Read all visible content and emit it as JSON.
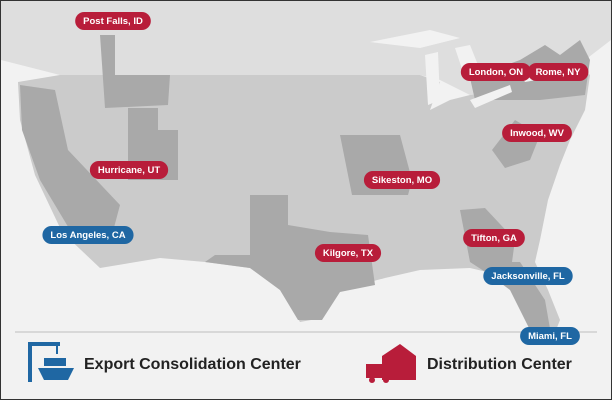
{
  "legend": [
    {
      "label": "Export Consolidation Center",
      "color": "#1f67a3",
      "locations": [
        "Los Angeles, CA",
        "Jacksonville, FL",
        "Miami, FL"
      ]
    },
    {
      "label": "Distribution Center",
      "color": "#b81d3a",
      "locations": [
        "Post Falls, ID",
        "London, ON",
        "Rome, NY",
        "Inwood, WV",
        "Hurricane, UT",
        "Sikeston, MO",
        "Tifton, GA",
        "Kilgore, TX"
      ]
    }
  ]
}
